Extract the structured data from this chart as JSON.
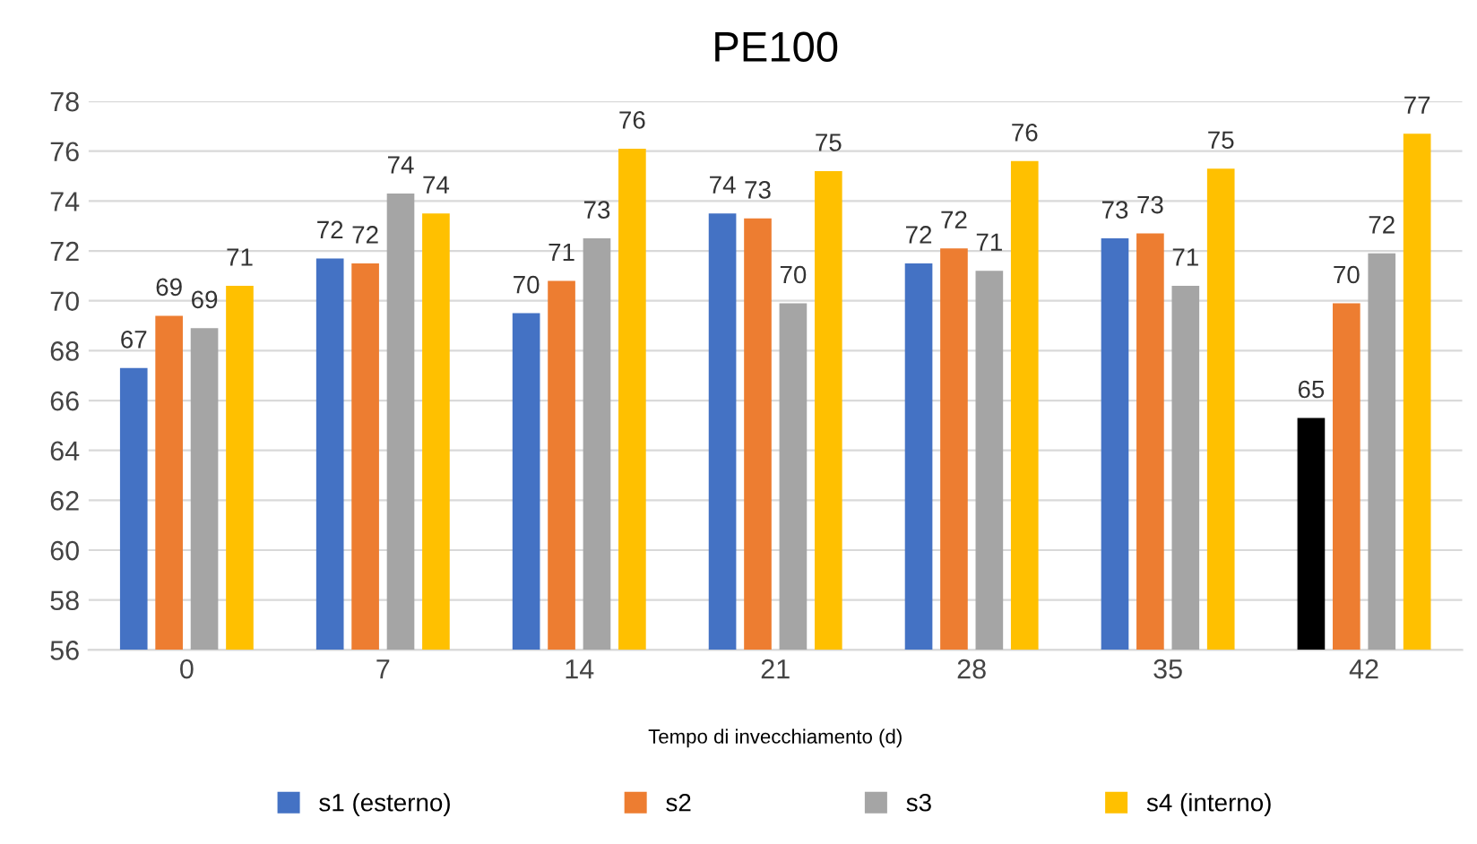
{
  "chart_data": {
    "type": "bar",
    "title": "PE100",
    "xlabel": "Tempo di invecchiamento (d)",
    "categories": [
      "0",
      "7",
      "14",
      "21",
      "28",
      "35",
      "42"
    ],
    "series": [
      {
        "name": "s1 (esterno)",
        "color": "#4472c4",
        "colors": [
          "#4472c4",
          "#4472c4",
          "#4472c4",
          "#4472c4",
          "#4472c4",
          "#4472c4",
          "#000000"
        ],
        "values": [
          67.3,
          71.7,
          69.5,
          73.5,
          71.5,
          72.5,
          65.3
        ],
        "value_labels": [
          "67",
          "72",
          "70",
          "74",
          "72",
          "73",
          "65"
        ]
      },
      {
        "name": "s2",
        "color": "#ed7d31",
        "values": [
          69.4,
          71.5,
          70.8,
          73.3,
          72.1,
          72.7,
          69.9
        ],
        "value_labels": [
          "69",
          "72",
          "71",
          "73",
          "72",
          "73",
          "70"
        ]
      },
      {
        "name": "s3",
        "color": "#a5a5a5",
        "values": [
          68.9,
          74.3,
          72.5,
          69.9,
          71.2,
          70.6,
          71.9
        ],
        "value_labels": [
          "69",
          "74",
          "73",
          "70",
          "71",
          "71",
          "72"
        ]
      },
      {
        "name": "s4 (interno)",
        "color": "#ffc000",
        "values": [
          70.6,
          73.5,
          76.1,
          75.2,
          75.6,
          75.3,
          76.7
        ],
        "value_labels": [
          "71",
          "74",
          "76",
          "75",
          "76",
          "75",
          "77"
        ]
      }
    ],
    "ylim": [
      56,
      78
    ],
    "yticks": [
      56,
      58,
      60,
      62,
      64,
      66,
      68,
      70,
      72,
      74,
      76,
      78
    ],
    "grid": "y",
    "legend": "bottom"
  }
}
